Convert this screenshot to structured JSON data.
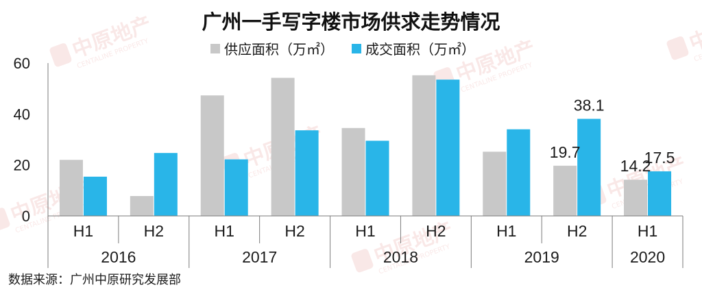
{
  "chart_data": {
    "type": "bar",
    "title": "广州一手写字楼市场供求走势情况",
    "ylim": [
      0,
      60
    ],
    "yticks": [
      0,
      20,
      40,
      60
    ],
    "grid": false,
    "legend_position": "top",
    "categories": [
      {
        "half": "H1",
        "year": "2016"
      },
      {
        "half": "H2",
        "year": "2016"
      },
      {
        "half": "H1",
        "year": "2017"
      },
      {
        "half": "H2",
        "year": "2017"
      },
      {
        "half": "H1",
        "year": "2018"
      },
      {
        "half": "H2",
        "year": "2018"
      },
      {
        "half": "H1",
        "year": "2019"
      },
      {
        "half": "H2",
        "year": "2019"
      },
      {
        "half": "H1",
        "year": "2020"
      }
    ],
    "year_groups": [
      {
        "label": "2016",
        "count": 2
      },
      {
        "label": "2017",
        "count": 2
      },
      {
        "label": "2018",
        "count": 2
      },
      {
        "label": "2019",
        "count": 2
      },
      {
        "label": "2020",
        "count": 1
      }
    ],
    "series": [
      {
        "name": "供应面积（万㎡）",
        "color": "#c8c8c8",
        "values": [
          22,
          7.8,
          47.3,
          54.2,
          34.5,
          55.2,
          25.2,
          19.7,
          14.2
        ]
      },
      {
        "name": "成交面积（万㎡）",
        "color": "#29b5e8",
        "values": [
          15.4,
          24.7,
          22.2,
          33.6,
          29.5,
          53.5,
          34.0,
          38.1,
          17.5
        ]
      }
    ],
    "data_labels": [
      {
        "series": 0,
        "index": 7,
        "text": "19.7"
      },
      {
        "series": 1,
        "index": 7,
        "text": "38.1"
      },
      {
        "series": 0,
        "index": 8,
        "text": "14.2"
      },
      {
        "series": 1,
        "index": 8,
        "text": "17.5"
      }
    ]
  },
  "watermark": {
    "brand": "中原地产",
    "brand_en": "CENTALINE PROPERTY"
  },
  "source": "数据来源：广州中原研究发展部"
}
